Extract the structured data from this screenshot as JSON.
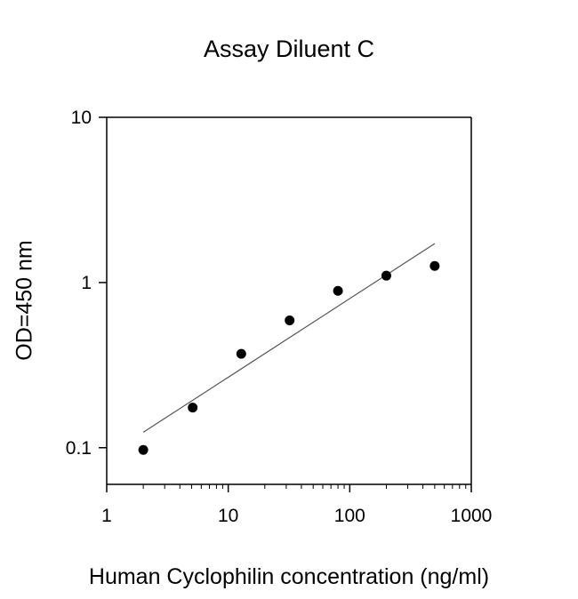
{
  "chart_data": {
    "type": "scatter",
    "title": "Assay Diluent C",
    "xlabel": "Human  Cyclophilin concentration (ng/ml)",
    "ylabel": "OD=450 nm",
    "xscale": "log",
    "yscale": "log",
    "xlim": [
      1,
      1000
    ],
    "ylim": [
      0.06,
      10
    ],
    "xticks": [
      1,
      10,
      100,
      1000
    ],
    "xtick_labels": [
      "1",
      "10",
      "100",
      "1000"
    ],
    "yticks": [
      0.1,
      1,
      10
    ],
    "ytick_labels": [
      "0.1",
      "1",
      "10"
    ],
    "grid": false,
    "legend": "none",
    "series": [
      {
        "x": [
          2.0,
          5.1,
          12.8,
          32,
          80,
          200,
          500
        ],
        "y": [
          0.097,
          0.175,
          0.37,
          0.59,
          0.89,
          1.1,
          1.26
        ]
      }
    ],
    "fit_line": {
      "x": [
        2.0,
        500
      ],
      "y": [
        0.124,
        1.72
      ]
    },
    "colors": {
      "marker": "#000000",
      "fit_line": "#555555",
      "axis": "#000000"
    }
  }
}
